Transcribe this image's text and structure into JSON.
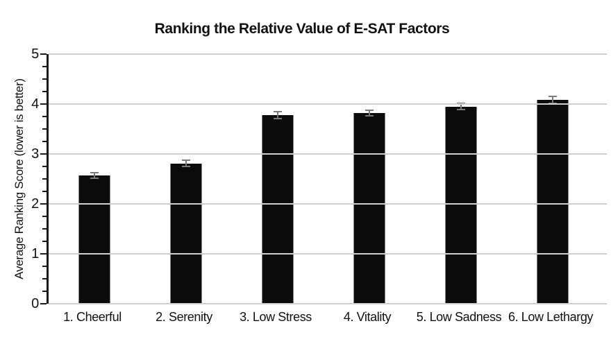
{
  "figure": {
    "background": "#ffffff"
  },
  "chart_data": {
    "type": "bar",
    "title": "Ranking the Relative Value of E-SAT Factors",
    "ylabel": "Average Ranking Score (lower is better)",
    "xlabel": "",
    "categories": [
      "1. Cheerful",
      "2. Serenity",
      "3. Low Stress",
      "4. Vitality",
      "5. Low Sadness",
      "6. Low Lethargy"
    ],
    "values": [
      2.57,
      2.81,
      3.78,
      3.82,
      3.95,
      4.08
    ],
    "error_bars": [
      0.07,
      0.08,
      0.08,
      0.07,
      0.08,
      0.08
    ],
    "ylim": [
      0,
      5
    ],
    "y_tick_labels": [
      "0",
      "1",
      "2",
      "3",
      "4",
      "5"
    ],
    "y_major_tick": 1,
    "y_minor_tick": 0.25,
    "grid": "horizontal-major",
    "legend": "none",
    "colors": {
      "bar": "#0b0b0b",
      "error_bar": "#7b7b7b",
      "gridline": "#ced2cf",
      "axis": "#1a1a1a",
      "text": "#111111"
    }
  }
}
